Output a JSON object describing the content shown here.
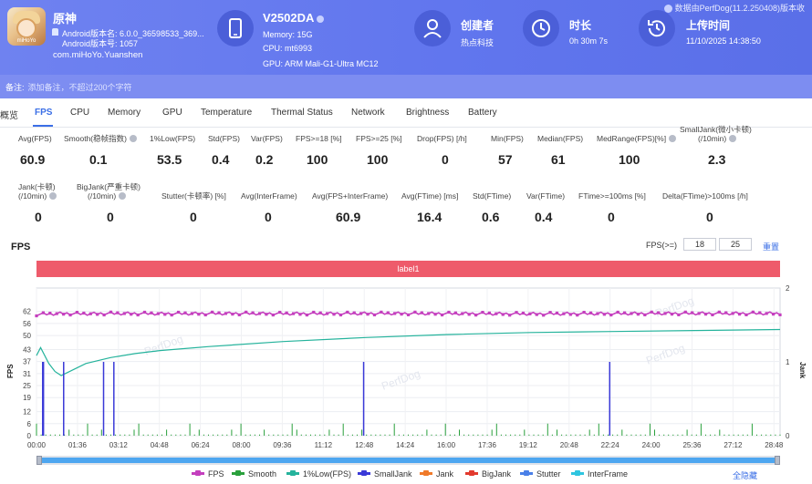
{
  "app": {
    "name": "原神",
    "version_line": "Android版本名: 6.0.0_36598533_369...",
    "code_line": "Android版本号: 1057",
    "package": "com.miHoYo.Yuanshen",
    "icon_tag": "miHoYo"
  },
  "device": {
    "name": "V2502DA",
    "memory": "Memory: 15G",
    "cpu": "CPU: mt6993",
    "gpu": "GPU: ARM Mali-G1-Ultra MC12"
  },
  "creator": {
    "title": "创建者",
    "value": "热点科技"
  },
  "duration": {
    "title": "时长",
    "value": "0h 30m 7s"
  },
  "upload": {
    "title": "上传时间",
    "value": "11/10/2025 14:38:50"
  },
  "perfdog_note": "数据由PerfDog(11.2.250408)版本收",
  "remark": {
    "label": "备注:",
    "placeholder": "添加备注，不超过200个字符"
  },
  "tabs": [
    "概览",
    "FPS",
    "CPU",
    "Memory",
    "GPU",
    "Temperature",
    "Thermal Status",
    "Network",
    "Brightness",
    "Battery"
  ],
  "active_tab": "FPS",
  "stats_row1": [
    {
      "label": "Avg(FPS)",
      "value": "60.9"
    },
    {
      "label": "Smooth(稳帧指数)",
      "value": "0.1"
    },
    {
      "label": "1%Low(FPS)",
      "value": "53.5"
    },
    {
      "label": "Std(FPS)",
      "value": "0.4"
    },
    {
      "label": "Var(FPS)",
      "value": "0.2"
    },
    {
      "label": "FPS>=18 [%]",
      "value": "100"
    },
    {
      "label": "FPS>=25 [%]",
      "value": "100"
    },
    {
      "label": "Drop(FPS) [/h]",
      "value": "0"
    },
    {
      "label": "Min(FPS)",
      "value": "57"
    },
    {
      "label": "Median(FPS)",
      "value": "61"
    },
    {
      "label": "MedRange(FPS)[%]",
      "value": "100"
    },
    {
      "label": "SmallJank(微小卡顿)",
      "label2": "(/10min)",
      "value": "2.3"
    }
  ],
  "stats_row2": [
    {
      "label": "Jank(卡顿)",
      "label2": "(/10min)",
      "value": "0"
    },
    {
      "label": "BigJank(严重卡顿)",
      "label2": "(/10min)",
      "value": "0"
    },
    {
      "label": "Stutter(卡顿率) [%]",
      "value": "0"
    },
    {
      "label": "Avg(InterFrame)",
      "value": "0"
    },
    {
      "label": "Avg(FPS+InterFrame)",
      "value": "60.9"
    },
    {
      "label": "Avg(FTime) [ms]",
      "value": "16.4"
    },
    {
      "label": "Std(FTime)",
      "value": "0.6"
    },
    {
      "label": "Var(FTime)",
      "value": "0.4"
    },
    {
      "label": "FTime>=100ms [%]",
      "value": "0"
    },
    {
      "label": "Delta(FTime)>100ms [/h]",
      "value": "0"
    }
  ],
  "chart_header": {
    "title": "FPS",
    "threshold_label": "FPS(>=)",
    "threshold_1": "18",
    "threshold_2": "25",
    "reset": "重置",
    "label_bar": "label1",
    "hide_all": "全隐藏"
  },
  "chart_data": {
    "type": "line",
    "title": "FPS",
    "ylabel": "FPS",
    "y2label": "Jank",
    "ylim": [
      0,
      62
    ],
    "yticks": [
      0,
      6,
      12,
      19,
      25,
      31,
      37,
      43,
      50,
      56,
      62
    ],
    "y2lim": [
      0,
      2
    ],
    "y2ticks": [
      0,
      1,
      2
    ],
    "xticks": [
      "00:00",
      "01:36",
      "03:12",
      "04:48",
      "06:24",
      "08:00",
      "09:36",
      "11:12",
      "12:48",
      "14:24",
      "16:00",
      "17:36",
      "19:12",
      "20:48",
      "22:24",
      "24:00",
      "25:36",
      "27:12",
      "28:48"
    ],
    "x_range_seconds": [
      0,
      1807
    ],
    "grid": true,
    "legend_position": "bottom",
    "series": [
      {
        "name": "FPS",
        "color": "#c43fbe",
        "x_seconds": [
          0,
          60,
          120,
          180,
          300,
          480,
          600,
          900,
          1200,
          1500,
          1807
        ],
        "values": [
          60.5,
          61,
          60.8,
          61,
          60.9,
          61,
          60.9,
          61,
          60.8,
          61,
          61
        ]
      },
      {
        "name": "Smooth",
        "color": "#2aa03c",
        "note_values": "spikes near 0-10"
      },
      {
        "name": "1%Low(FPS)",
        "color": "#25b39c",
        "x_seconds": [
          0,
          10,
          30,
          45,
          60,
          90,
          120,
          180,
          240,
          300,
          420,
          600,
          800,
          1000,
          1200,
          1400,
          1600,
          1807
        ],
        "values": [
          40,
          44,
          36,
          32,
          30,
          33,
          36,
          39,
          41,
          42.5,
          44.5,
          47,
          49,
          50.5,
          51.5,
          52,
          52.5,
          53
        ]
      },
      {
        "name": "SmallJank",
        "color": "#3a39d8",
        "x_seconds": [
          15,
          17,
          66,
          163,
          188,
          795,
          1393
        ],
        "values": [
          1,
          1,
          1,
          1,
          1,
          1,
          1
        ]
      },
      {
        "name": "Jank",
        "color": "#f07a2a"
      },
      {
        "name": "BigJank",
        "color": "#e23a2e"
      },
      {
        "name": "Stutter",
        "color": "#4a80e8"
      },
      {
        "name": "InterFrame",
        "color": "#2ec5e0"
      }
    ]
  }
}
